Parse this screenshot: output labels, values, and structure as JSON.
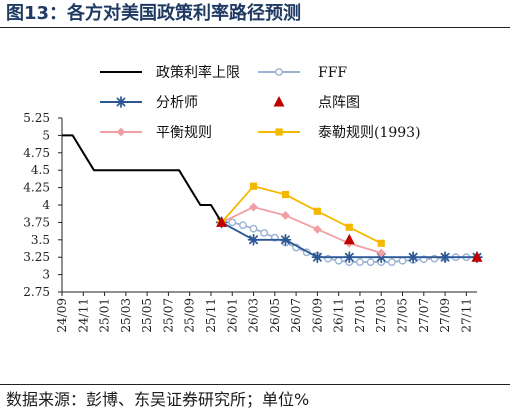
{
  "title": "图13：各方对美国政策利率路径预测",
  "source": "数据来源：彭博、东吴证券研究所；单位%",
  "chart_data": {
    "type": "line",
    "ylim": [
      2.75,
      5.25
    ],
    "yticks": [
      2.75,
      3,
      3.25,
      3.5,
      3.75,
      4,
      4.25,
      4.5,
      4.75,
      5,
      5.25
    ],
    "ytick_labels": [
      "2.75",
      "3",
      "3.25",
      "3.5",
      "3.75",
      "4",
      "4.25",
      "4.5",
      "4.75",
      "5",
      "5.25"
    ],
    "xticks": [
      "24/09",
      "24/11",
      "25/01",
      "25/03",
      "25/05",
      "25/07",
      "25/09",
      "25/11",
      "26/01",
      "26/03",
      "26/05",
      "26/07",
      "26/09",
      "26/11",
      "27/01",
      "27/03",
      "27/05",
      "27/07",
      "27/09",
      "27/11"
    ],
    "x_domain": [
      "2024-09",
      "2027-12"
    ],
    "grid": false,
    "legend": [
      {
        "label": "政策利率上限",
        "series": "policy"
      },
      {
        "label": "FFF",
        "series": "fff"
      },
      {
        "label": "分析师",
        "series": "analyst"
      },
      {
        "label": "点阵图",
        "series": "dot"
      },
      {
        "label": "平衡规则",
        "series": "balanced"
      },
      {
        "label": "泰勒规则(1993)",
        "series": "taylor"
      }
    ],
    "series": [
      {
        "key": "policy",
        "name": "政策利率上限",
        "color": "#000000",
        "marker": "none",
        "line": "solid",
        "points": [
          [
            "2024-09",
            5.0
          ],
          [
            "2024-10",
            5.0
          ],
          [
            "2024-11",
            4.75
          ],
          [
            "2024-12",
            4.5
          ],
          [
            "2025-01",
            4.5
          ],
          [
            "2025-02",
            4.5
          ],
          [
            "2025-03",
            4.5
          ],
          [
            "2025-04",
            4.5
          ],
          [
            "2025-05",
            4.5
          ],
          [
            "2025-06",
            4.5
          ],
          [
            "2025-07",
            4.5
          ],
          [
            "2025-08",
            4.5
          ],
          [
            "2025-09",
            4.25
          ],
          [
            "2025-10",
            4.0
          ],
          [
            "2025-11",
            4.0
          ],
          [
            "2025-12",
            3.75
          ]
        ]
      },
      {
        "key": "fff",
        "name": "FFF",
        "color": "#9ab3d3",
        "marker": "circle",
        "line": "solid",
        "points": [
          [
            "2025-12",
            3.75
          ],
          [
            "2026-01",
            3.75
          ],
          [
            "2026-02",
            3.71
          ],
          [
            "2026-03",
            3.66
          ],
          [
            "2026-04",
            3.6
          ],
          [
            "2026-05",
            3.53
          ],
          [
            "2026-06",
            3.46
          ],
          [
            "2026-07",
            3.39
          ],
          [
            "2026-08",
            3.32
          ],
          [
            "2026-09",
            3.27
          ],
          [
            "2026-10",
            3.23
          ],
          [
            "2026-11",
            3.2
          ],
          [
            "2026-12",
            3.18
          ],
          [
            "2027-01",
            3.18
          ],
          [
            "2027-02",
            3.18
          ],
          [
            "2027-03",
            3.18
          ],
          [
            "2027-04",
            3.18
          ],
          [
            "2027-05",
            3.2
          ],
          [
            "2027-06",
            3.21
          ],
          [
            "2027-07",
            3.22
          ],
          [
            "2027-08",
            3.23
          ],
          [
            "2027-09",
            3.24
          ],
          [
            "2027-10",
            3.25
          ],
          [
            "2027-11",
            3.25
          ],
          [
            "2027-12",
            3.25
          ]
        ]
      },
      {
        "key": "analyst",
        "name": "分析师",
        "color": "#2b5797",
        "marker": "star",
        "line": "solid",
        "points": [
          [
            "2025-12",
            3.75
          ],
          [
            "2026-03",
            3.5
          ],
          [
            "2026-06",
            3.5
          ],
          [
            "2026-09",
            3.25
          ],
          [
            "2026-12",
            3.25
          ],
          [
            "2027-03",
            3.25
          ],
          [
            "2027-06",
            3.25
          ],
          [
            "2027-09",
            3.25
          ],
          [
            "2027-12",
            3.25
          ]
        ]
      },
      {
        "key": "balanced",
        "name": "平衡规则",
        "color": "#f29fa3",
        "marker": "diamond",
        "line": "solid",
        "points": [
          [
            "2025-12",
            3.75
          ],
          [
            "2026-03",
            3.97
          ],
          [
            "2026-06",
            3.85
          ],
          [
            "2026-09",
            3.65
          ],
          [
            "2026-12",
            3.45
          ],
          [
            "2027-03",
            3.31
          ]
        ]
      },
      {
        "key": "taylor",
        "name": "泰勒规则(1993)",
        "color": "#f5b800",
        "marker": "square",
        "line": "solid",
        "points": [
          [
            "2025-12",
            3.75
          ],
          [
            "2026-03",
            4.27
          ],
          [
            "2026-06",
            4.15
          ],
          [
            "2026-09",
            3.91
          ],
          [
            "2026-12",
            3.68
          ],
          [
            "2027-03",
            3.45
          ]
        ]
      },
      {
        "key": "dot",
        "name": "点阵图",
        "color": "#c00000",
        "marker": "triangle",
        "line": "none",
        "points": [
          [
            "2025-12",
            3.75
          ],
          [
            "2026-12",
            3.5
          ],
          [
            "2027-12",
            3.25
          ]
        ]
      }
    ]
  }
}
